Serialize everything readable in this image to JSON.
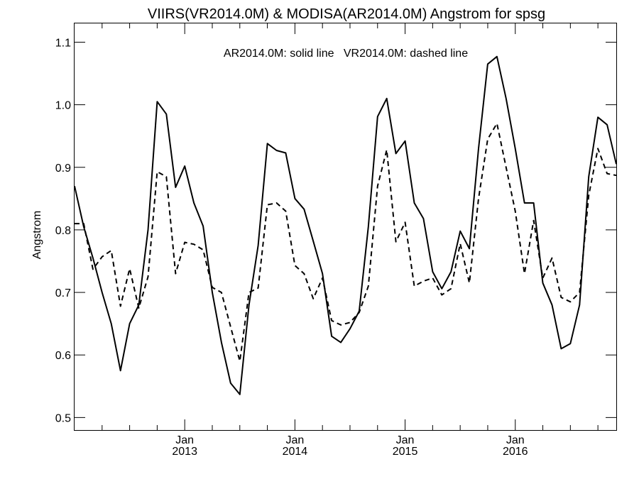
{
  "chart_data": {
    "type": "line",
    "title": "VIIRS(VR2014.0M) & MODISA(AR2014.0M)  Angstrom for spsg",
    "annotation": "AR2014.0M: solid line   VR2014.0M: dashed line",
    "ylabel": "Angstrom",
    "xlabel": "",
    "ylim": [
      0.48,
      1.13
    ],
    "x_range": [
      "2012-01",
      "2016-12"
    ],
    "y_ticks": [
      {
        "value": 0.5,
        "label": "0.5"
      },
      {
        "value": 0.6,
        "label": "0.6"
      },
      {
        "value": 0.7,
        "label": "0.7"
      },
      {
        "value": 0.8,
        "label": "0.8"
      },
      {
        "value": 0.9,
        "label": "0.9"
      },
      {
        "value": 1.0,
        "label": "1.0"
      },
      {
        "value": 1.1,
        "label": "1.1"
      }
    ],
    "x_ticks": [
      {
        "date": "2013-01",
        "line1": "Jan",
        "line2": "2013"
      },
      {
        "date": "2014-01",
        "line1": "Jan",
        "line2": "2014"
      },
      {
        "date": "2015-01",
        "line1": "Jan",
        "line2": "2015"
      },
      {
        "date": "2016-01",
        "line1": "Jan",
        "line2": "2016"
      }
    ],
    "x_minor_ticks": [
      "2012-04",
      "2012-07",
      "2012-10",
      "2013-04",
      "2013-07",
      "2013-10",
      "2014-04",
      "2014-07",
      "2014-10",
      "2015-04",
      "2015-07",
      "2015-10",
      "2016-04",
      "2016-07",
      "2016-10"
    ],
    "grid": false,
    "x": [
      "2012-01",
      "2012-02",
      "2012-03",
      "2012-04",
      "2012-05",
      "2012-06",
      "2012-07",
      "2012-08",
      "2012-09",
      "2012-10",
      "2012-11",
      "2012-12",
      "2013-01",
      "2013-02",
      "2013-03",
      "2013-04",
      "2013-05",
      "2013-06",
      "2013-07",
      "2013-08",
      "2013-09",
      "2013-10",
      "2013-11",
      "2013-12",
      "2014-01",
      "2014-02",
      "2014-03",
      "2014-04",
      "2014-05",
      "2014-06",
      "2014-07",
      "2014-08",
      "2014-09",
      "2014-10",
      "2014-11",
      "2014-12",
      "2015-01",
      "2015-02",
      "2015-03",
      "2015-04",
      "2015-05",
      "2015-06",
      "2015-07",
      "2015-08",
      "2015-09",
      "2015-10",
      "2015-11",
      "2015-12",
      "2016-01",
      "2016-02",
      "2016-03",
      "2016-04",
      "2016-05",
      "2016-06",
      "2016-07",
      "2016-08",
      "2016-09",
      "2016-10",
      "2016-11",
      "2016-12"
    ],
    "series": [
      {
        "style": "solid",
        "values": [
          0.87,
          0.805,
          0.755,
          0.7,
          0.65,
          0.575,
          0.65,
          0.68,
          0.8,
          1.005,
          0.985,
          0.868,
          0.902,
          0.843,
          0.806,
          0.7,
          0.62,
          0.555,
          0.537,
          0.68,
          0.775,
          0.938,
          0.927,
          0.923,
          0.85,
          0.833,
          0.782,
          0.73,
          0.63,
          0.62,
          0.642,
          0.67,
          0.805,
          0.981,
          1.01,
          0.922,
          0.942,
          0.843,
          0.818,
          0.733,
          0.706,
          0.733,
          0.798,
          0.77,
          0.93,
          1.065,
          1.077,
          1.01,
          0.93,
          0.843,
          0.843,
          0.715,
          0.68,
          0.61,
          0.618,
          0.68,
          0.885,
          0.98,
          0.968,
          0.905
        ]
      },
      {
        "style": "dashed",
        "values": [
          0.81,
          0.81,
          0.737,
          0.757,
          0.767,
          0.678,
          0.738,
          0.675,
          0.725,
          0.893,
          0.885,
          0.73,
          0.78,
          0.777,
          0.768,
          0.708,
          0.7,
          0.645,
          0.59,
          0.7,
          0.707,
          0.84,
          0.843,
          0.83,
          0.743,
          0.73,
          0.69,
          0.723,
          0.655,
          0.648,
          0.652,
          0.668,
          0.71,
          0.87,
          0.928,
          0.781,
          0.812,
          0.71,
          0.718,
          0.723,
          0.696,
          0.706,
          0.778,
          0.715,
          0.85,
          0.945,
          0.97,
          0.9,
          0.83,
          0.73,
          0.815,
          0.723,
          0.755,
          0.692,
          0.685,
          0.7,
          0.855,
          0.93,
          0.89,
          0.887
        ]
      }
    ]
  }
}
